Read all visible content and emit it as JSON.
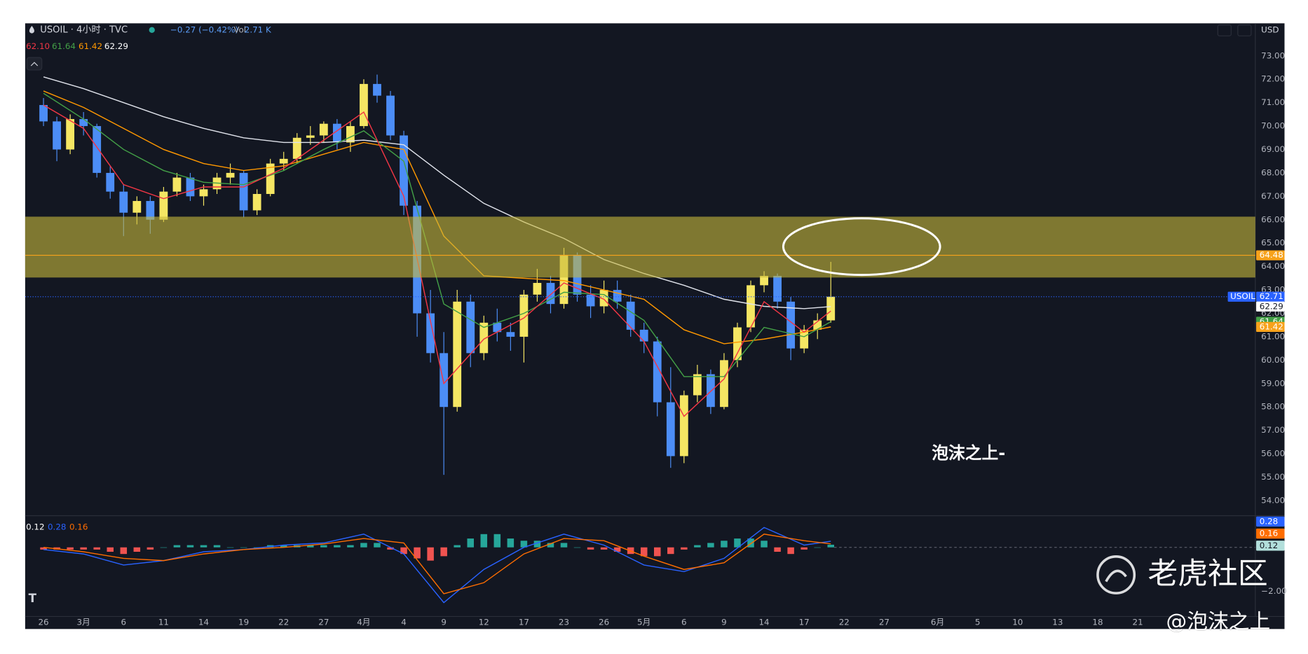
{
  "header": {
    "symbol": "USOIL · 4小时 · TVC",
    "change": "−0.27 (−0.42%)",
    "volume_label": "Vol",
    "volume": "2.71 K",
    "ma_values": [
      "62.10",
      "61.64",
      "61.42",
      "62.29"
    ],
    "currency": "USD",
    "macd_values": [
      "0.12",
      "0.28",
      "0.16"
    ]
  },
  "chart_data": [
    {
      "type": "candlestick",
      "x": [
        0,
        1,
        2,
        3,
        4,
        5,
        6,
        7,
        8,
        9,
        10,
        11,
        12,
        13,
        14,
        15,
        16,
        17,
        18,
        19,
        20,
        21,
        22,
        23,
        24,
        25,
        26,
        27,
        28,
        29,
        30,
        31,
        32,
        33,
        34,
        35,
        36,
        37,
        38,
        39,
        40,
        41,
        42,
        43,
        44,
        45,
        46,
        47,
        48,
        49,
        50,
        51,
        52,
        53,
        54,
        55,
        56,
        57,
        58,
        59
      ],
      "open": [
        70.9,
        70.2,
        69.0,
        70.3,
        70.0,
        68.0,
        67.2,
        66.3,
        66.8,
        66.0,
        67.2,
        67.8,
        67.0,
        67.3,
        67.8,
        68.0,
        66.4,
        67.1,
        68.4,
        68.6,
        69.5,
        69.6,
        70.1,
        69.3,
        70.0,
        71.8,
        71.3,
        69.6,
        66.6,
        62.0,
        60.3,
        58.0,
        62.5,
        60.3,
        61.6,
        61.2,
        61.0,
        62.8,
        63.3,
        62.4,
        64.5,
        62.8,
        62.3,
        63.0,
        62.5,
        61.3,
        60.8,
        58.2,
        55.9,
        58.5,
        59.4,
        58.0,
        60.0,
        61.4,
        63.2,
        63.6,
        62.5,
        60.5,
        61.3,
        61.7
      ],
      "high": [
        71.2,
        70.4,
        70.5,
        70.6,
        70.1,
        68.3,
        67.5,
        67.0,
        67.0,
        67.4,
        68.0,
        68.0,
        67.5,
        68.0,
        68.4,
        68.1,
        67.3,
        68.6,
        68.9,
        69.7,
        70.0,
        70.2,
        70.3,
        70.2,
        72.0,
        72.2,
        71.5,
        69.8,
        66.8,
        63.0,
        61.2,
        63.0,
        62.8,
        61.9,
        62.2,
        61.6,
        63.0,
        63.9,
        63.6,
        64.8,
        64.6,
        63.2,
        63.4,
        63.4,
        62.8,
        61.6,
        61.0,
        59.7,
        58.7,
        59.8,
        59.6,
        60.3,
        61.6,
        63.4,
        63.8,
        63.7,
        62.7,
        61.5,
        62.0,
        64.2
      ],
      "low": [
        70.0,
        68.5,
        68.8,
        69.6,
        67.8,
        66.9,
        65.3,
        65.8,
        65.4,
        65.9,
        67.0,
        66.8,
        66.6,
        67.1,
        67.5,
        66.1,
        66.2,
        67.0,
        68.1,
        68.4,
        69.2,
        69.3,
        69.0,
        68.9,
        69.9,
        71.0,
        69.4,
        66.2,
        61.0,
        59.9,
        55.1,
        57.8,
        59.7,
        60.0,
        60.8,
        60.4,
        59.9,
        62.5,
        62.0,
        62.2,
        62.5,
        61.8,
        62.0,
        62.2,
        61.0,
        60.3,
        57.6,
        55.4,
        55.6,
        58.2,
        57.7,
        57.9,
        59.7,
        61.2,
        62.9,
        62.2,
        60.0,
        60.3,
        60.9,
        61.6
      ],
      "close": [
        70.2,
        69.0,
        70.3,
        70.0,
        68.0,
        67.2,
        66.3,
        66.8,
        66.0,
        67.2,
        67.8,
        67.0,
        67.3,
        67.8,
        68.0,
        66.4,
        67.1,
        68.4,
        68.6,
        69.5,
        69.6,
        70.1,
        69.3,
        70.0,
        71.8,
        71.3,
        69.6,
        66.6,
        62.0,
        60.3,
        58.0,
        62.5,
        60.3,
        61.6,
        61.2,
        61.0,
        62.8,
        63.3,
        62.4,
        64.5,
        62.8,
        62.3,
        63.0,
        62.5,
        61.3,
        60.8,
        58.2,
        55.9,
        58.5,
        59.4,
        58.0,
        60.0,
        61.4,
        63.2,
        63.6,
        62.5,
        60.5,
        61.3,
        61.7,
        62.71
      ],
      "up_color": "#f5e663",
      "down_color": "#4c8df6",
      "series": [
        {
          "color": "#e0e3eb",
          "x": [
            0,
            3,
            6,
            9,
            12,
            15,
            18,
            21,
            24,
            27,
            30,
            33,
            36,
            39,
            42,
            45,
            48,
            51,
            54,
            57,
            59
          ],
          "values": [
            72.1,
            71.6,
            71.0,
            70.4,
            69.9,
            69.5,
            69.3,
            69.3,
            69.4,
            69.2,
            67.9,
            66.7,
            65.9,
            65.2,
            64.3,
            63.7,
            63.2,
            62.6,
            62.3,
            62.2,
            62.29
          ]
        },
        {
          "color": "#ff9800",
          "x": [
            0,
            3,
            6,
            9,
            12,
            15,
            18,
            21,
            24,
            27,
            30,
            33,
            36,
            39,
            42,
            45,
            48,
            51,
            54,
            57,
            59
          ],
          "values": [
            71.5,
            70.8,
            69.9,
            69.0,
            68.4,
            68.1,
            68.3,
            68.8,
            69.3,
            69.0,
            65.3,
            63.6,
            63.5,
            63.4,
            63.0,
            62.6,
            61.3,
            60.7,
            60.9,
            61.2,
            61.42
          ]
        },
        {
          "color": "#43a047",
          "x": [
            0,
            3,
            6,
            9,
            12,
            15,
            18,
            21,
            24,
            27,
            30,
            33,
            36,
            39,
            42,
            45,
            48,
            51,
            54,
            57,
            59
          ],
          "values": [
            71.4,
            70.3,
            69.0,
            68.1,
            67.6,
            67.5,
            68.1,
            69.0,
            69.8,
            68.5,
            62.4,
            61.4,
            62.0,
            62.9,
            62.8,
            61.7,
            59.3,
            59.3,
            61.4,
            61.0,
            61.64
          ]
        },
        {
          "color": "#f23645",
          "x": [
            0,
            3,
            6,
            9,
            12,
            15,
            18,
            21,
            24,
            27,
            30,
            33,
            36,
            39,
            42,
            45,
            48,
            51,
            54,
            57,
            59
          ],
          "values": [
            70.9,
            69.9,
            67.5,
            66.9,
            67.4,
            67.4,
            68.2,
            69.4,
            70.6,
            67.0,
            59.0,
            60.9,
            61.8,
            63.3,
            62.6,
            60.8,
            57.6,
            59.2,
            62.5,
            61.2,
            62.1
          ]
        }
      ],
      "zone": {
        "from": 63.53,
        "to": 66.13,
        "color": "#c8b93c"
      },
      "price_labels": [
        {
          "value": 64.48,
          "label": "64.48",
          "color": "#f7a21b",
          "line": "solid"
        },
        {
          "value": 62.71,
          "name": "USOIL",
          "label": "62.71",
          "color": "#2962ff",
          "line": "dotted"
        },
        {
          "value": 62.29,
          "label": "62.29",
          "color": "#ffffff"
        },
        {
          "value": 61.64,
          "label": "61.64",
          "color": "#43a047"
        },
        {
          "value": 61.42,
          "label": "61.42",
          "color": "#f7a21b"
        }
      ],
      "xlim": [
        -1.375,
        90.8125
      ],
      "ylim": [
        53.39,
        74.39
      ],
      "yticks": [
        {
          "value": 54,
          "label": "54.00"
        },
        {
          "value": 55,
          "label": "55.00"
        },
        {
          "value": 56,
          "label": "56.00"
        },
        {
          "value": 57,
          "label": "57.00"
        },
        {
          "value": 58,
          "label": "58.00"
        },
        {
          "value": 59,
          "label": "59.00"
        },
        {
          "value": 60,
          "label": "60.00"
        },
        {
          "value": 61,
          "label": "61.00"
        },
        {
          "value": 62,
          "label": "62.00"
        },
        {
          "value": 63,
          "label": "63.00"
        },
        {
          "value": 64,
          "label": "64.00"
        },
        {
          "value": 65,
          "label": "65.00"
        },
        {
          "value": 66,
          "label": "66.00"
        },
        {
          "value": 67,
          "label": "67.00"
        },
        {
          "value": 68,
          "label": "68.00"
        },
        {
          "value": 69,
          "label": "69.00"
        },
        {
          "value": 70,
          "label": "70.00"
        },
        {
          "value": 71,
          "label": "71.00"
        },
        {
          "value": 72,
          "label": "72.00"
        },
        {
          "value": 73,
          "label": "73.00"
        }
      ],
      "xticks": [
        {
          "value": 0,
          "label": "26"
        },
        {
          "value": 3,
          "label": "3月"
        },
        {
          "value": 6,
          "label": "6"
        },
        {
          "value": 9,
          "label": "11"
        },
        {
          "value": 12,
          "label": "14"
        },
        {
          "value": 15,
          "label": "19"
        },
        {
          "value": 18,
          "label": "22"
        },
        {
          "value": 21,
          "label": "27"
        },
        {
          "value": 24,
          "label": "4月"
        },
        {
          "value": 27,
          "label": "4"
        },
        {
          "value": 30,
          "label": "9"
        },
        {
          "value": 33,
          "label": "12"
        },
        {
          "value": 36,
          "label": "17"
        },
        {
          "value": 39,
          "label": "23"
        },
        {
          "value": 42,
          "label": "26"
        },
        {
          "value": 45,
          "label": "5月"
        },
        {
          "value": 48,
          "label": "6"
        },
        {
          "value": 51,
          "label": "9"
        },
        {
          "value": 54,
          "label": "14"
        },
        {
          "value": 57,
          "label": "17"
        },
        {
          "value": 60,
          "label": "22"
        },
        {
          "value": 63,
          "label": "27"
        },
        {
          "value": 67,
          "label": "6月"
        },
        {
          "value": 70,
          "label": "5"
        },
        {
          "value": 73,
          "label": "10"
        },
        {
          "value": 76,
          "label": "13"
        },
        {
          "value": 79,
          "label": "18"
        },
        {
          "value": 82,
          "label": "21"
        }
      ],
      "grid": false
    },
    {
      "type": "macd",
      "x": [
        0,
        1,
        2,
        3,
        4,
        5,
        6,
        7,
        8,
        9,
        10,
        11,
        12,
        13,
        14,
        15,
        16,
        17,
        18,
        19,
        20,
        21,
        22,
        23,
        24,
        25,
        26,
        27,
        28,
        29,
        30,
        31,
        32,
        33,
        34,
        35,
        36,
        37,
        38,
        39,
        40,
        41,
        42,
        43,
        44,
        45,
        46,
        47,
        48,
        49,
        50,
        51,
        52,
        53,
        54,
        55,
        56,
        57,
        58,
        59
      ],
      "values": [
        -0.1,
        -0.1,
        -0.1,
        -0.1,
        -0.1,
        -0.2,
        -0.3,
        -0.2,
        -0.1,
        0.0,
        0.1,
        0.1,
        0.1,
        0.1,
        0.0,
        0.0,
        0.0,
        0.1,
        0.1,
        0.1,
        0.1,
        0.1,
        0.1,
        0.1,
        0.2,
        0.2,
        -0.1,
        -0.3,
        -0.5,
        -0.6,
        -0.4,
        0.1,
        0.4,
        0.6,
        0.6,
        0.4,
        0.3,
        0.3,
        0.2,
        0.2,
        0.0,
        -0.1,
        -0.1,
        -0.2,
        -0.3,
        -0.4,
        -0.4,
        -0.3,
        -0.1,
        0.1,
        0.2,
        0.3,
        0.4,
        0.4,
        0.3,
        -0.2,
        -0.3,
        -0.1,
        0.0,
        0.12
      ],
      "pos_color": "#26a69a",
      "neg_color": "#ef5350",
      "series": [
        {
          "color": "#2962ff",
          "x": [
            0,
            3,
            6,
            9,
            12,
            15,
            18,
            21,
            24,
            27,
            30,
            33,
            36,
            39,
            42,
            45,
            48,
            51,
            54,
            57,
            59
          ],
          "values": [
            -0.1,
            -0.3,
            -0.8,
            -0.6,
            -0.2,
            -0.1,
            0.1,
            0.2,
            0.6,
            -0.3,
            -2.5,
            -1.0,
            0.0,
            0.6,
            0.1,
            -0.8,
            -1.1,
            -0.5,
            0.9,
            0.1,
            0.28
          ]
        },
        {
          "color": "#ff6d00",
          "x": [
            0,
            3,
            6,
            9,
            12,
            15,
            18,
            21,
            24,
            27,
            30,
            33,
            36,
            39,
            42,
            45,
            48,
            51,
            54,
            57,
            59
          ],
          "values": [
            0.0,
            -0.2,
            -0.5,
            -0.6,
            -0.3,
            -0.1,
            0.0,
            0.15,
            0.4,
            0.2,
            -2.1,
            -1.6,
            -0.3,
            0.4,
            0.3,
            -0.4,
            -1.0,
            -0.7,
            0.6,
            0.3,
            0.16
          ]
        }
      ],
      "value_labels": [
        {
          "value": 0.28,
          "label": "0.28",
          "color": "#2962ff"
        },
        {
          "value": 0.16,
          "label": "0.16",
          "color": "#ff6d00"
        },
        {
          "value": 0.12,
          "label": "0.12",
          "color": "#b2dfdb"
        }
      ],
      "xlim": [
        -1.375,
        90.8125
      ],
      "ylim": [
        -3.132,
        1.396
      ],
      "yticks": [
        {
          "value": -2,
          "label": "−2.00"
        }
      ]
    }
  ],
  "annotation": "泡沫之上-",
  "watermark": {
    "brand": "老虎社区",
    "author": "@泡沫之上"
  }
}
